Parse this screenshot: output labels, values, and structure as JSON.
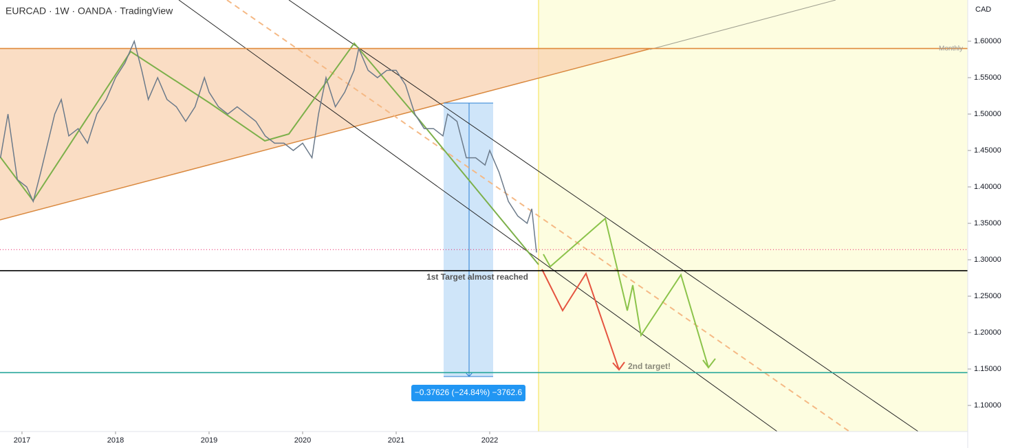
{
  "chart_data": {
    "type": "line",
    "title": "EURCAD · 1W · OANDA · TradingView",
    "y_axis_label": "CAD",
    "annotations": {
      "monthly": "Monthly",
      "target1": "1st Target almost reached",
      "target2": "2nd target!",
      "measure": "−0.37626 (−24.84%) −3762.6"
    },
    "xlim": [
      2016.765,
      2027.11
    ],
    "xticks": [
      2017,
      2018,
      2019,
      2020,
      2021,
      2022
    ],
    "ylim": [
      1.0642,
      1.6566
    ],
    "yticks": [
      {
        "value": 1.6,
        "label": "1.60000"
      },
      {
        "value": 1.55,
        "label": "1.55000"
      },
      {
        "value": 1.5,
        "label": "1.50000"
      },
      {
        "value": 1.45,
        "label": "1.45000"
      },
      {
        "value": 1.4,
        "label": "1.40000"
      },
      {
        "value": 1.35,
        "label": "1.35000"
      },
      {
        "value": 1.3,
        "label": "1.30000"
      },
      {
        "value": 1.25,
        "label": "1.25000"
      },
      {
        "value": 1.2,
        "label": "1.20000"
      },
      {
        "value": 1.15,
        "label": "1.15000"
      },
      {
        "value": 1.1,
        "label": "1.10000"
      }
    ],
    "levels": [
      {
        "value": 1.59,
        "color": "#e08a3c"
      },
      {
        "value": 1.285,
        "color": "#000000"
      },
      {
        "value": 1.145,
        "color": "#26a69a"
      },
      {
        "value": 1.314,
        "color": "#e91e63"
      }
    ],
    "series": [
      {
        "name": "EURCAD",
        "color": "#6b7a8a",
        "x": [
          2016.77,
          2016.85,
          2016.95,
          2017.05,
          2017.12,
          2017.2,
          2017.35,
          2017.42,
          2017.5,
          2017.6,
          2017.7,
          2017.8,
          2017.9,
          2018.0,
          2018.1,
          2018.2,
          2018.28,
          2018.35,
          2018.45,
          2018.55,
          2018.65,
          2018.75,
          2018.85,
          2018.95,
          2019.0,
          2019.1,
          2019.2,
          2019.3,
          2019.4,
          2019.5,
          2019.6,
          2019.7,
          2019.8,
          2019.9,
          2020.0,
          2020.1,
          2020.17,
          2020.25,
          2020.35,
          2020.45,
          2020.55,
          2020.6,
          2020.7,
          2020.8,
          2020.9,
          2021.0,
          2021.1,
          2021.2,
          2021.3,
          2021.4,
          2021.5,
          2021.55,
          2021.65,
          2021.75,
          2021.85,
          2021.95,
          2022.0,
          2022.1,
          2022.2,
          2022.3,
          2022.4,
          2022.45,
          2022.5
        ],
        "values": [
          1.44,
          1.5,
          1.41,
          1.4,
          1.38,
          1.42,
          1.5,
          1.52,
          1.47,
          1.48,
          1.46,
          1.5,
          1.52,
          1.55,
          1.57,
          1.6,
          1.56,
          1.52,
          1.55,
          1.52,
          1.51,
          1.49,
          1.51,
          1.55,
          1.53,
          1.51,
          1.5,
          1.51,
          1.5,
          1.49,
          1.47,
          1.46,
          1.46,
          1.45,
          1.46,
          1.44,
          1.5,
          1.55,
          1.51,
          1.53,
          1.56,
          1.59,
          1.56,
          1.55,
          1.56,
          1.56,
          1.54,
          1.5,
          1.48,
          1.48,
          1.47,
          1.5,
          1.49,
          1.44,
          1.44,
          1.43,
          1.45,
          1.42,
          1.38,
          1.36,
          1.35,
          1.37,
          1.31
        ]
      }
    ]
  }
}
